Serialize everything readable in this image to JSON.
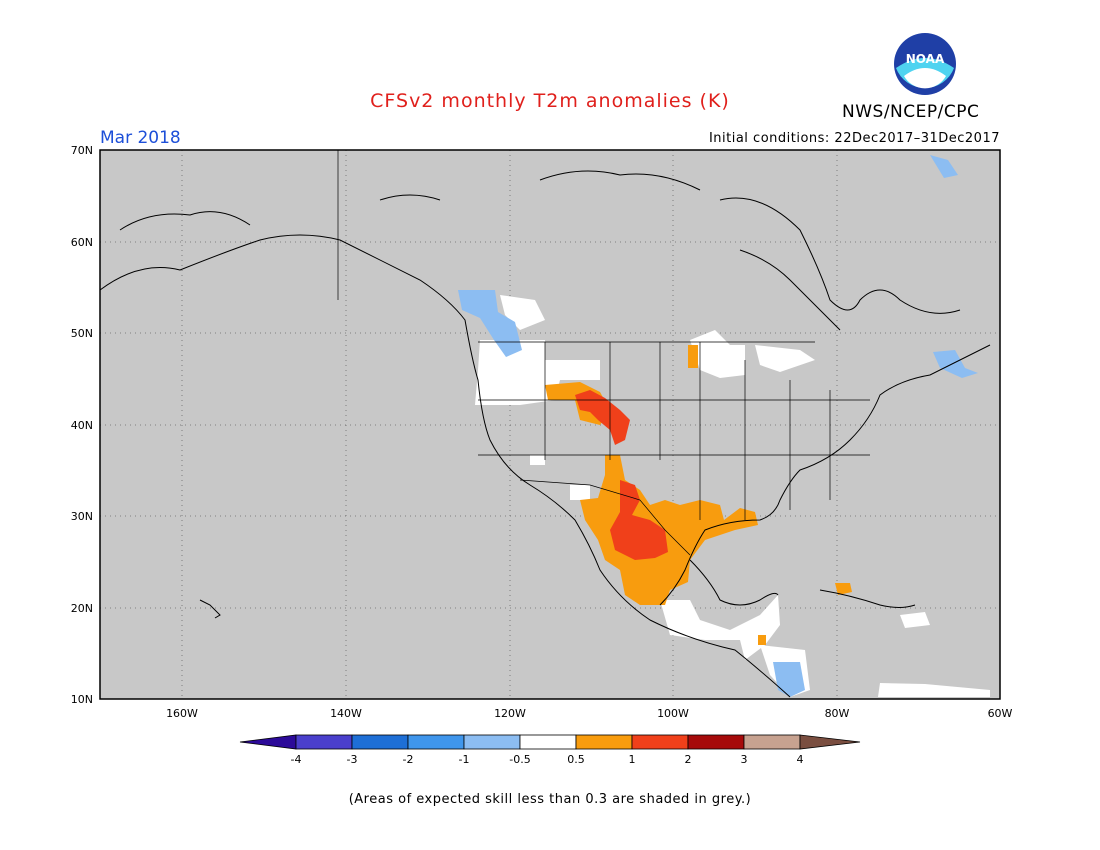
{
  "header": {
    "title": "CFSv2 monthly T2m anomalies (K)",
    "org": "NWS/NCEP/CPC",
    "period": "Mar 2018",
    "init": "Initial conditions: 22Dec2017–31Dec2017",
    "logo_text": "NOAA"
  },
  "colors": {
    "title": "#e0201c",
    "period": "#1d4fd8",
    "land": "#c8c8c8",
    "grid": "#555555"
  },
  "map": {
    "lat_labels": [
      "70N",
      "60N",
      "50N",
      "40N",
      "30N",
      "20N",
      "10N"
    ],
    "lon_labels": [
      "160W",
      "140W",
      "120W",
      "100W",
      "80W",
      "60W"
    ]
  },
  "legend": {
    "labels": [
      "-4",
      "-3",
      "-2",
      "-1",
      "-0.5",
      "0.5",
      "1",
      "2",
      "3",
      "4"
    ],
    "colors": [
      "#2c0a99",
      "#4a3fcc",
      "#1e6fd6",
      "#3f96ec",
      "#8cbdf2",
      "#ffffff",
      "#f89c0e",
      "#f0401a",
      "#a60a0a",
      "#c7a290",
      "#7a4e40"
    ]
  },
  "footnote": "(Areas of expected skill less than 0.3 are shaded in grey.)"
}
